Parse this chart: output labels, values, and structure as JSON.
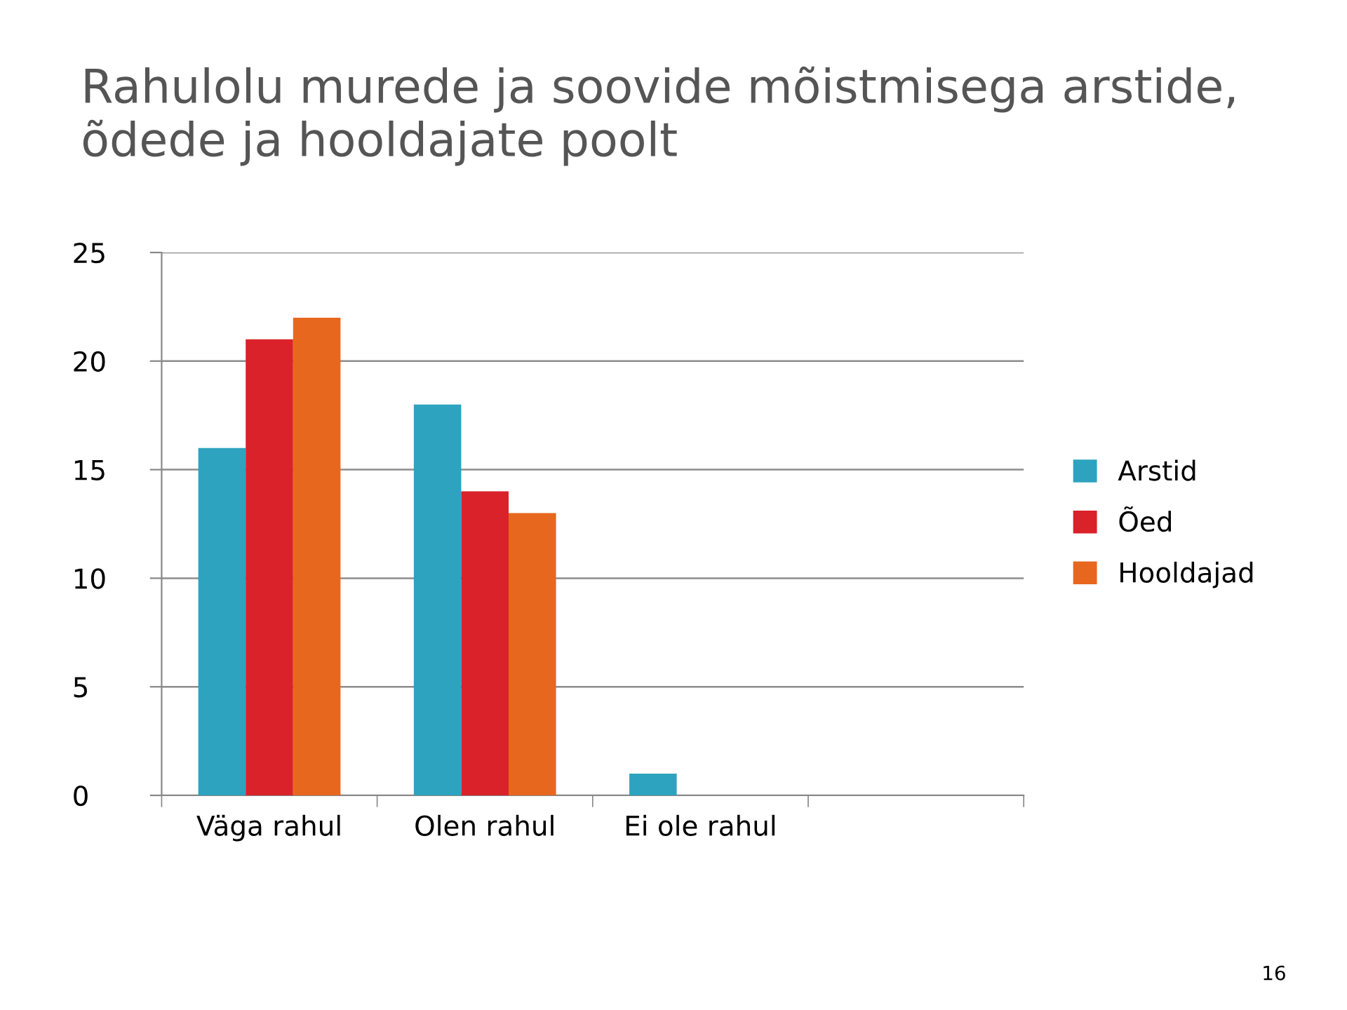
{
  "chart_data": {
    "type": "bar",
    "title": "Rahulolu murede ja soovide mõistmisega arstide, õdede ja hooldajate poolt",
    "categories": [
      "Väga rahul",
      "Olen rahul",
      "Ei ole rahul",
      null
    ],
    "series": [
      {
        "name": "Arstid",
        "color": "#2ea3bf",
        "values": [
          16,
          18,
          1,
          null
        ]
      },
      {
        "name": "Õed",
        "color": "#d9222a",
        "values": [
          21,
          14,
          0,
          null
        ]
      },
      {
        "name": "Hooldajad",
        "color": "#e8671e",
        "values": [
          22,
          13,
          0,
          null
        ]
      }
    ],
    "ylim": [
      0,
      25
    ],
    "yticks": [
      0,
      5,
      10,
      15,
      20,
      25
    ],
    "grid": "y",
    "legend": "right",
    "annotations": [
      "16"
    ]
  }
}
